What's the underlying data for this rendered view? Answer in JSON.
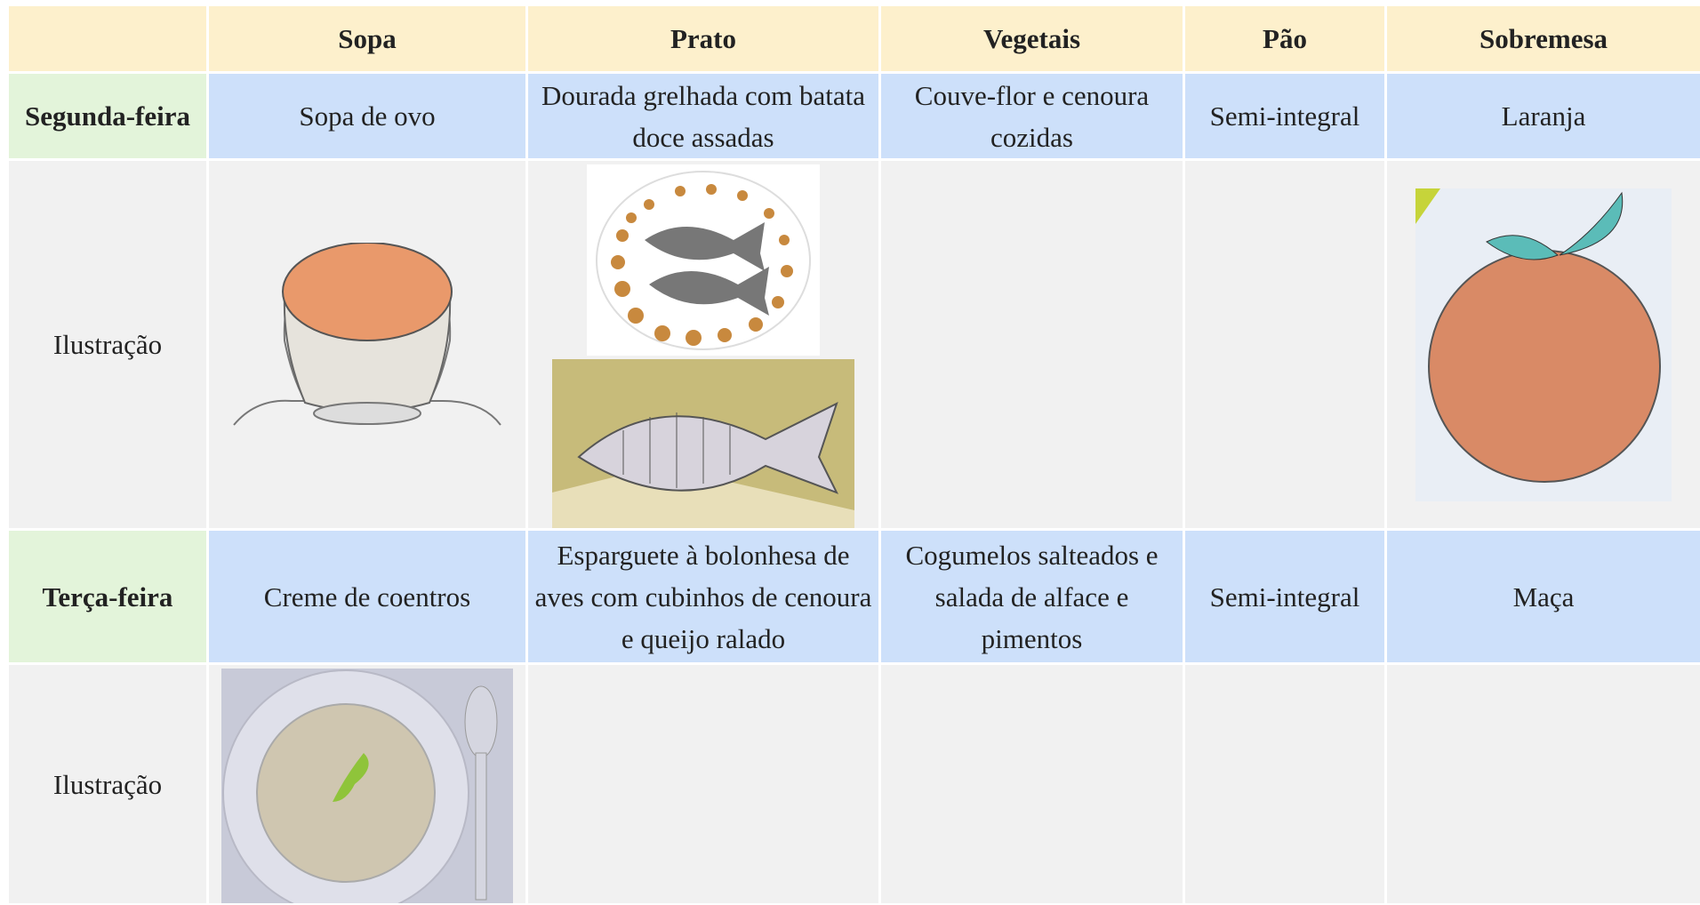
{
  "table": {
    "header": [
      "Sopa",
      "Prato",
      "Vegetais",
      "Pão",
      "Sobremesa"
    ],
    "days": [
      {
        "day": "Segunda-feira",
        "cells": [
          "Sopa de ovo",
          "Dourada grelhada com batata doce assadas",
          "Couve-flor e cenoura cozidas",
          "Semi-integral",
          "Laranja"
        ],
        "illustration": "Ilustração"
      },
      {
        "day": "Terça-feira",
        "cells": [
          "Creme de coentros",
          "Esparguete à bolonhesa de aves com cubinhos de cenoura e queijo ralado",
          "Cogumelos salteados e salada de alface e pimentos",
          "Semi-integral",
          "Maça"
        ],
        "illustration": "Ilustração"
      }
    ]
  }
}
